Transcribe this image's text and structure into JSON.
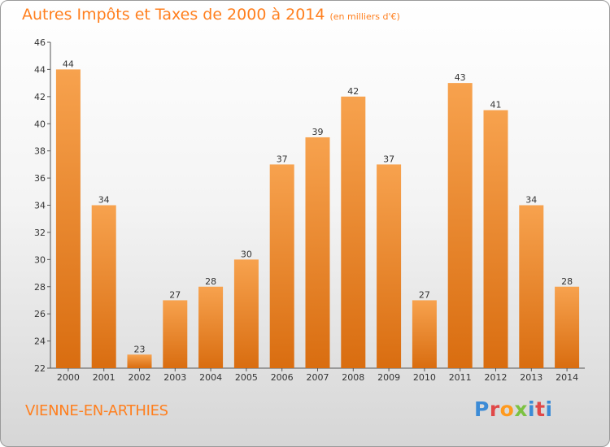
{
  "header": {
    "title": "Autres Impôts et Taxes de 2000 à 2014",
    "unit": "(en milliers d'€)"
  },
  "footer": {
    "commune": "VIENNE-EN-ARTHIES",
    "logo": "Proxiti"
  },
  "colors": {
    "bar_top": "#f7a24e",
    "bar_bottom": "#d96d10",
    "title": "#ff7f1e"
  },
  "chart_data": {
    "type": "bar",
    "title": "Autres Impôts et Taxes de 2000 à 2014",
    "subtitle": "(en milliers d'€)",
    "xlabel": "",
    "ylabel": "",
    "categories": [
      "2000",
      "2001",
      "2002",
      "2003",
      "2004",
      "2005",
      "2006",
      "2007",
      "2008",
      "2009",
      "2010",
      "2011",
      "2012",
      "2013",
      "2014"
    ],
    "values": [
      44,
      34,
      23,
      27,
      28,
      30,
      37,
      39,
      42,
      37,
      27,
      43,
      41,
      34,
      28
    ],
    "ylim": [
      22,
      46
    ],
    "yticks": [
      22,
      24,
      26,
      28,
      30,
      32,
      34,
      36,
      38,
      40,
      42,
      44,
      46
    ],
    "grid": false,
    "legend": "none"
  }
}
